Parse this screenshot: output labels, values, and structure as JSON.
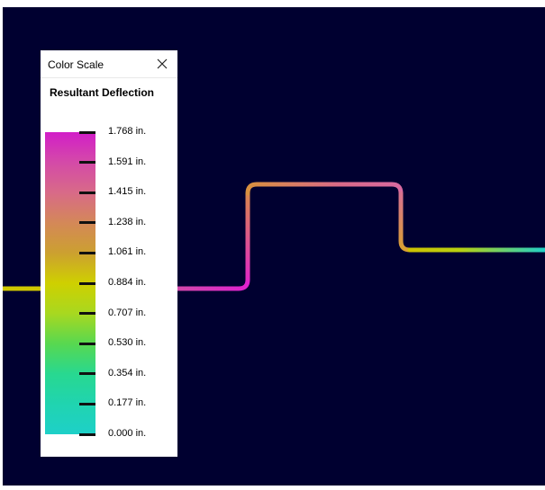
{
  "panel": {
    "title": "Color Scale",
    "heading": "Resultant Deflection"
  },
  "scale": {
    "labels": [
      "1.768 in.",
      "1.591 in.",
      "1.415 in.",
      "1.238 in.",
      "1.061 in.",
      "0.884 in.",
      "0.707 in.",
      "0.530 in.",
      "0.354 in.",
      "0.177 in.",
      "0.000 in."
    ]
  }
}
